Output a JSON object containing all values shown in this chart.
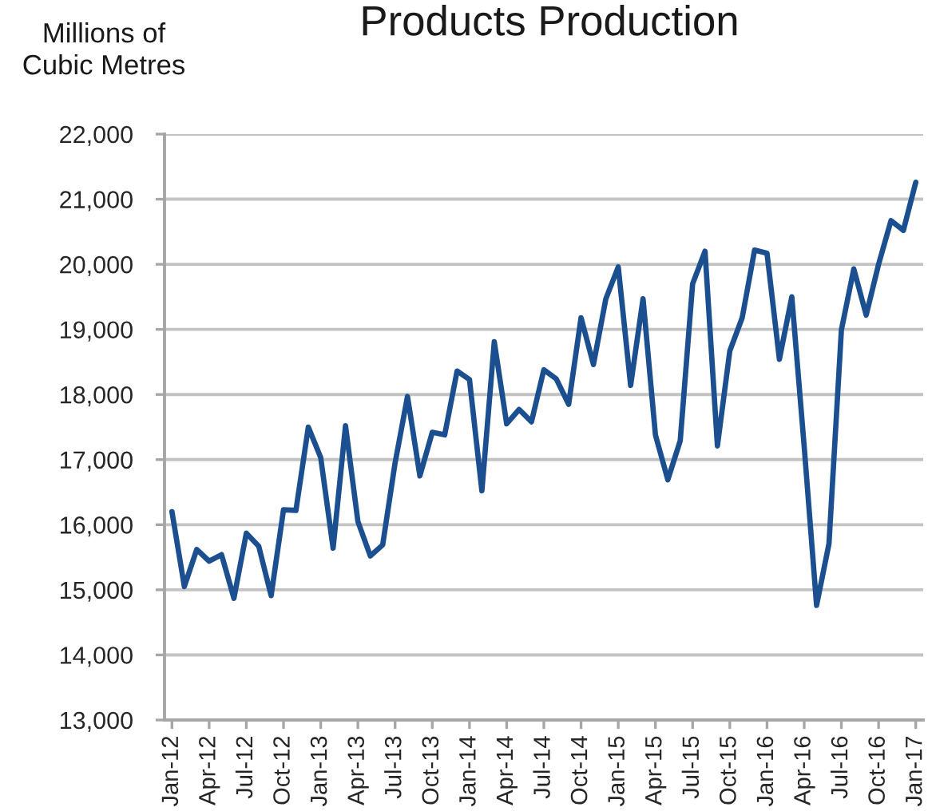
{
  "chart_data": {
    "type": "line",
    "title": "Products Production",
    "ylabel": "Millions of\nCubic Metres",
    "categories": [
      "Jan-12",
      null,
      null,
      "Apr-12",
      null,
      null,
      "Jul-12",
      null,
      null,
      "Oct-12",
      null,
      null,
      "Jan-13",
      null,
      null,
      "Apr-13",
      null,
      null,
      "Jul-13",
      null,
      null,
      "Oct-13",
      null,
      null,
      "Jan-14",
      null,
      null,
      "Apr-14",
      null,
      null,
      "Jul-14",
      null,
      null,
      "Oct-14",
      null,
      null,
      "Jan-15",
      null,
      null,
      "Apr-15",
      null,
      null,
      "Jul-15",
      null,
      null,
      "Oct-15",
      null,
      null,
      "Jan-16",
      null,
      null,
      "Apr-16",
      null,
      null,
      "Jul-16",
      null,
      null,
      "Oct-16",
      null,
      null,
      "Jan-17"
    ],
    "series": [
      {
        "color": "#1b4f8f",
        "values": [
          16200,
          15050,
          15620,
          15440,
          15540,
          14870,
          15870,
          15670,
          14910,
          16230,
          16220,
          17500,
          17030,
          15640,
          17520,
          16050,
          15520,
          15690,
          16950,
          17970,
          16750,
          17420,
          17380,
          18360,
          18230,
          16520,
          18810,
          17550,
          17770,
          17580,
          18380,
          18240,
          17850,
          19180,
          18460,
          19470,
          19960,
          18140,
          19470,
          17380,
          16690,
          17290,
          19700,
          20200,
          17210,
          18670,
          19180,
          20220,
          20170,
          18540,
          19500,
          17200,
          14760,
          15710,
          18990,
          19930,
          19220,
          20000,
          20670,
          20520,
          21260
        ]
      }
    ],
    "ylim": [
      13000,
      22000
    ],
    "yticks": [
      {
        "value": 13000,
        "label": "13,000"
      },
      {
        "value": 14000,
        "label": "14,000"
      },
      {
        "value": 15000,
        "label": "15,000"
      },
      {
        "value": 16000,
        "label": "16,000"
      },
      {
        "value": 17000,
        "label": "17,000"
      },
      {
        "value": 18000,
        "label": "18,000"
      },
      {
        "value": 19000,
        "label": "19,000"
      },
      {
        "value": 20000,
        "label": "20,000"
      },
      {
        "value": 21000,
        "label": "21,000"
      },
      {
        "value": 22000,
        "label": "22,000"
      }
    ],
    "grid": "y",
    "line_style": "solid"
  }
}
